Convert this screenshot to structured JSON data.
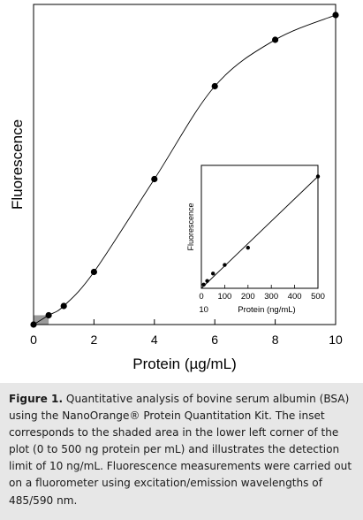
{
  "chart_data": [
    {
      "type": "line",
      "xlabel": "Protein (µg/mL)",
      "ylabel": "Fluorescence",
      "xlim": [
        0,
        10
      ],
      "x_ticks": [
        0,
        2,
        4,
        6,
        8,
        10
      ],
      "y_ticks": [],
      "grid": false,
      "series": [
        {
          "x": [
            0,
            0.5,
            1,
            2,
            4,
            6,
            8,
            10
          ],
          "y": [
            0,
            0.03,
            0.06,
            0.17,
            0.47,
            0.77,
            0.92,
            1.0
          ]
        }
      ],
      "shaded_region": {
        "x": [
          0,
          0.5
        ],
        "y": [
          0,
          0.03
        ]
      }
    },
    {
      "type": "line",
      "inset": true,
      "xlabel": "Protein (ng/mL)",
      "ylabel": "Fluorescence",
      "xlim": [
        0,
        500
      ],
      "x_ticks": [
        0,
        100,
        200,
        300,
        400,
        500
      ],
      "x_tick_extra": "10",
      "y_ticks": [],
      "grid": false,
      "series": [
        {
          "x": [
            10,
            25,
            50,
            100,
            200,
            500
          ],
          "y": [
            0.03,
            0.06,
            0.12,
            0.19,
            0.33,
            0.91
          ]
        }
      ]
    }
  ],
  "caption": {
    "label": "Figure 1.",
    "text": "Quantitative analysis of bovine serum albumin (BSA) using the NanoOrange® Protein Quantitation Kit. The inset corresponds to the shaded area in the lower left corner of the plot (0 to 500 ng protein per mL) and illustrates the detection limit of 10 ng/mL. Fluorescence measurements were carried out on a fluorometer using excitation/emission wavelengths of 485/590 nm."
  },
  "colors": {
    "caption_background": "#e7e7e7",
    "shaded_area": "#9a9a9a",
    "ink": "#000000"
  }
}
